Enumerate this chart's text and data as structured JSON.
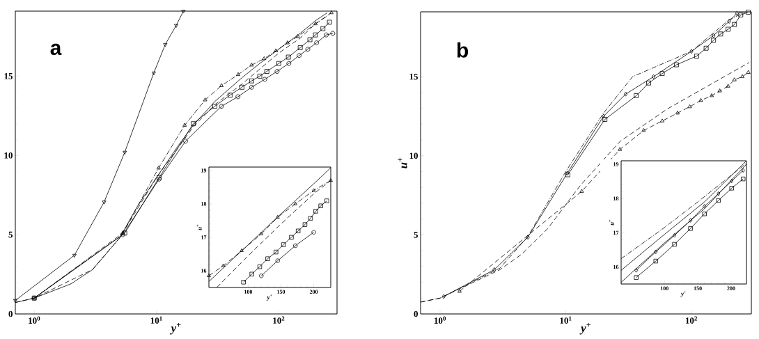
{
  "chart_data": [
    {
      "type": "line",
      "title": "a",
      "xlabel": "y$^{+}$",
      "log": "x",
      "xlim": [
        0.7,
        300
      ],
      "ylim": [
        0,
        19.1
      ],
      "xticks": [
        {
          "value": 1,
          "label": "10$^{0}$"
        },
        {
          "value": 10,
          "label": "10$^{1}$"
        },
        {
          "value": 100,
          "label": "10$^{2}$"
        }
      ],
      "yticks": [
        0,
        5,
        10,
        15
      ],
      "series": [
        {
          "color": "#000000",
          "marker": "triangle down",
          "line_style": "solid",
          "x": [
            0.7,
            2.13,
            3.73,
            5.5,
            9.5,
            11.8,
            14.5,
            16.6
          ],
          "values": [
            0.85,
            3.7,
            7.06,
            10.2,
            15.2,
            17.0,
            18.2,
            19.1
          ]
        },
        {
          "color": "#000000",
          "marker": "none",
          "line_style": "solid",
          "x": [
            0.7,
            1,
            2,
            3,
            5,
            7,
            10,
            15,
            20,
            30,
            50,
            70,
            100,
            150,
            200,
            250
          ],
          "values": [
            0.72,
            1.0,
            1.9,
            2.8,
            4.8,
            6.8,
            8.6,
            10.6,
            11.9,
            13.4,
            14.9,
            15.8,
            16.7,
            17.7,
            18.5,
            19.0
          ]
        },
        {
          "color": "#000000",
          "marker": "triangle",
          "line_style": "dashdot",
          "x": [
            1,
            5.3,
            10.4,
            17,
            25,
            34,
            46.6,
            60,
            76,
            95,
            118,
            143,
            200,
            270
          ],
          "values": [
            1.0,
            5.1,
            9.2,
            11.9,
            13.5,
            14.4,
            15.1,
            15.7,
            16.1,
            16.6,
            17.1,
            17.5,
            18.3,
            19.0
          ]
        },
        {
          "color": "#000000",
          "marker": "none",
          "line_style": "dashed",
          "x": [
            0.7,
            1,
            3,
            5,
            10,
            20,
            30,
            50,
            100,
            150,
            200,
            250
          ],
          "values": [
            0.72,
            1.0,
            2.8,
            4.8,
            8.6,
            11.8,
            13.2,
            14.5,
            16.45,
            17.4,
            18.3,
            18.8
          ]
        },
        {
          "color": "#000000",
          "marker": "square",
          "line_style": "solid",
          "x": [
            1,
            5.5,
            10.5,
            20,
            30,
            40,
            50,
            60,
            70,
            80,
            100,
            120,
            150,
            180,
            200,
            230,
            260
          ],
          "values": [
            1.0,
            5.1,
            8.6,
            12.0,
            13.1,
            13.8,
            14.3,
            14.7,
            15.0,
            15.3,
            15.8,
            16.2,
            16.8,
            17.3,
            17.6,
            18.0,
            18.4
          ]
        },
        {
          "color": "#000000",
          "marker": "circle",
          "line_style": "solid",
          "x": [
            1,
            5.3,
            10.5,
            17.3,
            34,
            46.4,
            60,
            77,
            97,
            121,
            147,
            173,
            204,
            245,
            277
          ],
          "values": [
            1.0,
            5.0,
            8.5,
            10.9,
            13.1,
            13.7,
            14.3,
            14.8,
            15.3,
            15.8,
            16.3,
            16.7,
            17.1,
            17.6,
            17.7
          ]
        }
      ]
    },
    {
      "type": "line",
      "xlabel": "y$^{+}$",
      "ylabel": "u$^{+}$",
      "xlim": [
        40,
        226
      ],
      "ylim": [
        15.5,
        19.1
      ],
      "xticks": [
        100,
        150,
        200
      ],
      "yticks": [
        16,
        17,
        18,
        19
      ],
      "series": [
        {
          "color": "#000000",
          "marker": "none",
          "line_style": "solid",
          "x": [
            40,
            100,
            150,
            200,
            226
          ],
          "values": [
            15.68,
            16.78,
            17.7,
            18.6,
            19.08
          ]
        },
        {
          "color": "#000000",
          "marker": "triangle",
          "line_style": "dashdot",
          "x": [
            40,
            62,
            90,
            120,
            145,
            172,
            200,
            226
          ],
          "values": [
            15.85,
            16.15,
            16.6,
            17.1,
            17.6,
            18.0,
            18.4,
            18.7
          ]
        },
        {
          "color": "#000000",
          "marker": "none",
          "line_style": "dashed",
          "x": [
            52,
            100,
            150,
            200,
            226
          ],
          "values": [
            15.5,
            16.45,
            17.4,
            18.3,
            18.7
          ]
        },
        {
          "color": "#000000",
          "marker": "square",
          "line_style": "solid",
          "x": [
            92.8,
            105.5,
            117.6,
            129.7,
            142.4,
            153.8,
            165.9,
            176.2,
            186.6,
            195.2,
            203.1,
            210.7,
            220
          ],
          "values": [
            15.66,
            15.9,
            16.12,
            16.36,
            16.56,
            16.78,
            17.0,
            17.19,
            17.38,
            17.57,
            17.78,
            17.94,
            18.09
          ]
        },
        {
          "color": "#000000",
          "marker": "circle",
          "line_style": "solid",
          "x": [
            120,
            145,
            172,
            200
          ],
          "values": [
            15.85,
            16.3,
            16.75,
            17.15
          ]
        }
      ]
    },
    {
      "type": "line",
      "title": "b",
      "xlabel": "y$^{+}$",
      "ylabel": "u$^{+}$",
      "log": "x",
      "xlim": [
        0.7,
        300
      ],
      "ylim": [
        0,
        19.1
      ],
      "xticks": [
        {
          "value": 1,
          "label": "10$^{0}$"
        },
        {
          "value": 10,
          "label": "10$^{1}$"
        },
        {
          "value": 100,
          "label": "10$^{2}$"
        }
      ],
      "yticks": [
        0,
        5,
        10,
        15
      ],
      "series": [
        {
          "color": "#000000",
          "marker": "square",
          "line_style": "solid",
          "x": [
            10.4,
            20.5,
            36.4,
            45.7,
            58.6,
            76,
            110,
            131,
            150,
            171,
            196,
            220,
            247,
            283
          ],
          "values": [
            8.8,
            12.3,
            13.8,
            14.6,
            15.2,
            15.75,
            16.3,
            16.8,
            17.3,
            17.7,
            18.0,
            18.3,
            18.9,
            19.08
          ]
        },
        {
          "color": "#000000",
          "marker": "diamond",
          "line_style": "solid",
          "x": [
            1.07,
            2.7,
            5,
            10.3,
            20,
            30,
            50,
            100,
            150,
            200,
            230
          ],
          "values": [
            1.1,
            2.8,
            4.85,
            8.9,
            12.5,
            13.9,
            15.0,
            16.6,
            17.6,
            18.5,
            19.0
          ]
        },
        {
          "color": "#000000",
          "marker": "none",
          "line_style": "dashdot",
          "x": [
            0.7,
            1,
            3,
            5,
            10,
            20,
            34,
            100,
            200,
            270
          ],
          "values": [
            0.75,
            1.0,
            2.9,
            4.9,
            9.0,
            12.7,
            15.0,
            16.6,
            18.6,
            19.1
          ]
        },
        {
          "color": "#000000",
          "marker": "none",
          "line_style": "dashed",
          "x": [
            0.7,
            1,
            3,
            4.5,
            7.2,
            13,
            27,
            64,
            289
          ],
          "values": [
            0.75,
            1.0,
            2.8,
            3.8,
            5.4,
            8.1,
            10.9,
            12.95,
            15.9
          ]
        },
        {
          "color": "#000000",
          "marker": "triangle",
          "line_style": "dashed",
          "x": [
            1.43,
            13.4,
            27,
            41.7,
            58.6,
            77.6,
            97,
            119,
            145,
            168,
            196,
            220,
            254,
            284
          ],
          "values": [
            1.43,
            7.75,
            10.4,
            11.6,
            12.2,
            12.7,
            13.1,
            13.5,
            13.8,
            14.1,
            14.4,
            14.8,
            15.0,
            15.27
          ]
        }
      ]
    },
    {
      "type": "line",
      "xlabel": "y$^{+}$",
      "ylabel": "u$^{+}$",
      "xlim": [
        35,
        223
      ],
      "ylim": [
        15.5,
        19.1
      ],
      "xticks": [
        100,
        150,
        200
      ],
      "yticks": [
        16,
        17,
        18,
        19
      ],
      "series": [
        {
          "color": "#000000",
          "marker": "none",
          "line_style": "dashdot",
          "x": [
            35,
            100,
            150,
            223
          ],
          "values": [
            16.24,
            17.15,
            17.9,
            19.03
          ]
        },
        {
          "color": "#000000",
          "marker": "none",
          "line_style": "solid",
          "x": [
            35,
            100,
            160,
            223
          ],
          "values": [
            15.9,
            16.95,
            17.9,
            19.1
          ]
        },
        {
          "color": "#000000",
          "marker": "none",
          "line_style": "solid",
          "x": [
            35,
            100,
            160,
            223
          ],
          "values": [
            15.55,
            16.7,
            17.7,
            19.0
          ]
        },
        {
          "color": "#000000",
          "marker": "diamond",
          "line_style": "solid",
          "x": [
            57.6,
            87,
            115,
            139,
            160,
            181,
            200.8,
            218
          ],
          "values": [
            15.9,
            16.44,
            16.92,
            17.36,
            17.77,
            18.14,
            18.51,
            18.82
          ]
        },
        {
          "color": "#000000",
          "marker": "square",
          "line_style": "solid",
          "x": [
            57.6,
            87,
            115,
            139,
            160,
            181,
            200.8,
            218
          ],
          "values": [
            15.69,
            16.17,
            16.66,
            17.12,
            17.55,
            17.94,
            18.3,
            18.57
          ]
        }
      ]
    }
  ]
}
